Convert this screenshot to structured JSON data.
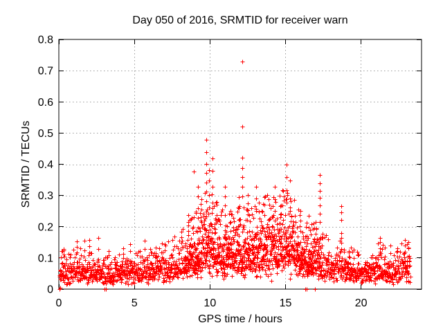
{
  "chart_data": {
    "type": "scatter",
    "title": "Day 050 of 2016, SRMTID for receiver warn",
    "xlabel": "GPS time / hours",
    "ylabel": "SRMTID / TECUs",
    "xlim": [
      0,
      24
    ],
    "ylim": [
      0,
      0.8
    ],
    "xticks": {
      "values": [
        0,
        5,
        10,
        15,
        20
      ],
      "labels": [
        "0",
        "5",
        "10",
        "15",
        "20"
      ]
    },
    "yticks": {
      "values": [
        0,
        0.1,
        0.2,
        0.3,
        0.4,
        0.5,
        0.6,
        0.7,
        0.8
      ],
      "labels": [
        "0",
        "0.1",
        "0.2",
        "0.3",
        "0.4",
        "0.5",
        "0.6",
        "0.7",
        "0.8"
      ]
    },
    "legend": "none",
    "style": {
      "background": "#ffffff",
      "axis_color": "#000000",
      "text_color": "#000000",
      "grid_color": "#9a9a9a",
      "grid_dash": [
        1.5,
        3.5
      ],
      "marker_color": "#ff0000",
      "marker_shape": "plus",
      "marker_size": 7,
      "marker_stroke_width": 1,
      "tick_length": 7,
      "grid_on": true
    },
    "series_name": "SRMTID for receiver warn",
    "band": {
      "comment_mean_profile": "piecewise-linear mean of the dense scatter band, TECUs vs hours",
      "mean_profile": [
        [
          0.0,
          0.05
        ],
        [
          0.3,
          0.06
        ],
        [
          0.8,
          0.054
        ],
        [
          1.2,
          0.062
        ],
        [
          1.7,
          0.058
        ],
        [
          2.1,
          0.052
        ],
        [
          2.6,
          0.056
        ],
        [
          3.0,
          0.046
        ],
        [
          3.5,
          0.048
        ],
        [
          4.0,
          0.05
        ],
        [
          4.5,
          0.053
        ],
        [
          5.0,
          0.052
        ],
        [
          5.5,
          0.057
        ],
        [
          6.0,
          0.058
        ],
        [
          6.5,
          0.063
        ],
        [
          7.0,
          0.068
        ],
        [
          7.5,
          0.072
        ],
        [
          8.0,
          0.082
        ],
        [
          8.5,
          0.095
        ],
        [
          9.0,
          0.11
        ],
        [
          9.5,
          0.128
        ],
        [
          9.8,
          0.148
        ],
        [
          10.1,
          0.138
        ],
        [
          10.5,
          0.122
        ],
        [
          11.0,
          0.112
        ],
        [
          11.5,
          0.108
        ],
        [
          12.0,
          0.122
        ],
        [
          12.5,
          0.115
        ],
        [
          13.0,
          0.122
        ],
        [
          13.5,
          0.132
        ],
        [
          14.0,
          0.142
        ],
        [
          14.5,
          0.148
        ],
        [
          15.0,
          0.142
        ],
        [
          15.5,
          0.132
        ],
        [
          16.0,
          0.112
        ],
        [
          16.5,
          0.092
        ],
        [
          17.0,
          0.098
        ],
        [
          17.5,
          0.082
        ],
        [
          18.0,
          0.072
        ],
        [
          18.7,
          0.075
        ],
        [
          19.2,
          0.062
        ],
        [
          19.7,
          0.055
        ],
        [
          20.2,
          0.055
        ],
        [
          20.7,
          0.06
        ],
        [
          21.2,
          0.068
        ],
        [
          21.6,
          0.062
        ],
        [
          22.0,
          0.056
        ],
        [
          22.5,
          0.06
        ],
        [
          22.9,
          0.075
        ],
        [
          23.25,
          0.068
        ]
      ],
      "x_start": 0.05,
      "x_end": 23.25,
      "x_step": 0.0125,
      "sigma": 0.4,
      "low_tail_prob": 0.06,
      "low_tail_factor": 0.55,
      "y_floor": 0.015,
      "cap_factor": 2.2,
      "seed": 20160050
    },
    "extra_band": {
      "x_start": 8.3,
      "x_end": 17.4,
      "x_step": 0.02,
      "sigma": 0.45,
      "low_tail_prob": 0.05,
      "low_tail_factor": 0.5,
      "y_floor": 0.02,
      "cap_factor": 2.2,
      "seed": 777050
    },
    "peak_columns": [
      {
        "x": 0.3,
        "ys": [
          0.11,
          0.128
        ]
      },
      {
        "x": 1.2,
        "ys": [
          0.118,
          0.135,
          0.152
        ]
      },
      {
        "x": 1.7,
        "ys": [
          0.125,
          0.155
        ]
      },
      {
        "x": 2.0,
        "ys": [
          0.118,
          0.138,
          0.158
        ]
      },
      {
        "x": 2.6,
        "ys": [
          0.128,
          0.163
        ]
      },
      {
        "x": 3.3,
        "ys": [
          0.108,
          0.122
        ]
      },
      {
        "x": 4.25,
        "ys": [
          0.112,
          0.13
        ]
      },
      {
        "x": 4.7,
        "ys": [
          0.122,
          0.143
        ]
      },
      {
        "x": 5.7,
        "ys": [
          0.128,
          0.155
        ]
      },
      {
        "x": 6.4,
        "ys": [
          0.116,
          0.133
        ]
      },
      {
        "x": 7.0,
        "ys": [
          0.125,
          0.143
        ]
      },
      {
        "x": 7.65,
        "ys": [
          0.138,
          0.168
        ]
      },
      {
        "x": 8.1,
        "ys": [
          0.148,
          0.166,
          0.184
        ]
      },
      {
        "x": 8.55,
        "ys": [
          0.172,
          0.203,
          0.238
        ]
      },
      {
        "x": 8.93,
        "ys": [
          0.376
        ]
      },
      {
        "x": 9.2,
        "ys": [
          0.198,
          0.228,
          0.26,
          0.298,
          0.328
        ]
      },
      {
        "x": 9.45,
        "ys": [
          0.215,
          0.255,
          0.288
        ]
      },
      {
        "x": 9.75,
        "ys": [
          0.248,
          0.282,
          0.312,
          0.342,
          0.372,
          0.402,
          0.438,
          0.478
        ]
      },
      {
        "x": 9.92,
        "ys": [
          0.262,
          0.302,
          0.348,
          0.382
        ]
      },
      {
        "x": 10.15,
        "ys": [
          0.278,
          0.328,
          0.378,
          0.418
        ]
      },
      {
        "x": 10.45,
        "ys": [
          0.238,
          0.28
        ]
      },
      {
        "x": 11.0,
        "ys": [
          0.238,
          0.268,
          0.298,
          0.328
        ]
      },
      {
        "x": 11.35,
        "ys": [
          0.215,
          0.25
        ]
      },
      {
        "x": 11.9,
        "ys": [
          0.222,
          0.26,
          0.295
        ]
      },
      {
        "x": 12.15,
        "ys": [
          0.298,
          0.328,
          0.358,
          0.388,
          0.422,
          0.52,
          0.73
        ]
      },
      {
        "x": 12.5,
        "ys": [
          0.24,
          0.275,
          0.302
        ]
      },
      {
        "x": 13.05,
        "ys": [
          0.25,
          0.29,
          0.328
        ]
      },
      {
        "x": 13.6,
        "ys": [
          0.238,
          0.27
        ]
      },
      {
        "x": 14.3,
        "ys": [
          0.25,
          0.288,
          0.328
        ]
      },
      {
        "x": 14.65,
        "ys": [
          0.24,
          0.265
        ]
      },
      {
        "x": 15.05,
        "ys": [
          0.278,
          0.318,
          0.358,
          0.398
        ]
      },
      {
        "x": 15.3,
        "ys": [
          0.25,
          0.29,
          0.348
        ]
      },
      {
        "x": 16.0,
        "ys": [
          0.22,
          0.25
        ]
      },
      {
        "x": 16.55,
        "ys": [
          0.198,
          0.235
        ]
      },
      {
        "x": 17.25,
        "ys": [
          0.215,
          0.242,
          0.268,
          0.292,
          0.315,
          0.34,
          0.365
        ]
      },
      {
        "x": 18.7,
        "ys": [
          0.128,
          0.148,
          0.165,
          0.18,
          0.222,
          0.245,
          0.265
        ]
      },
      {
        "x": 19.2,
        "ys": [
          0.105,
          0.122
        ]
      },
      {
        "x": 21.25,
        "ys": [
          0.11,
          0.13,
          0.15,
          0.165
        ]
      },
      {
        "x": 21.95,
        "ys": [
          0.115,
          0.14
        ]
      },
      {
        "x": 22.4,
        "ys": [
          0.105,
          0.122
        ]
      },
      {
        "x": 22.9,
        "ys": [
          0.12,
          0.14,
          0.158
        ]
      },
      {
        "x": 23.15,
        "ys": [
          0.13,
          0.15
        ]
      }
    ],
    "zero_points": [
      [
        0.05,
        0.0
      ],
      [
        0.1,
        0.004
      ],
      [
        3.0,
        0.0
      ],
      [
        3.1,
        0.0
      ],
      [
        16.3,
        0.0
      ],
      [
        16.4,
        0.0
      ],
      [
        16.95,
        0.0
      ]
    ]
  }
}
